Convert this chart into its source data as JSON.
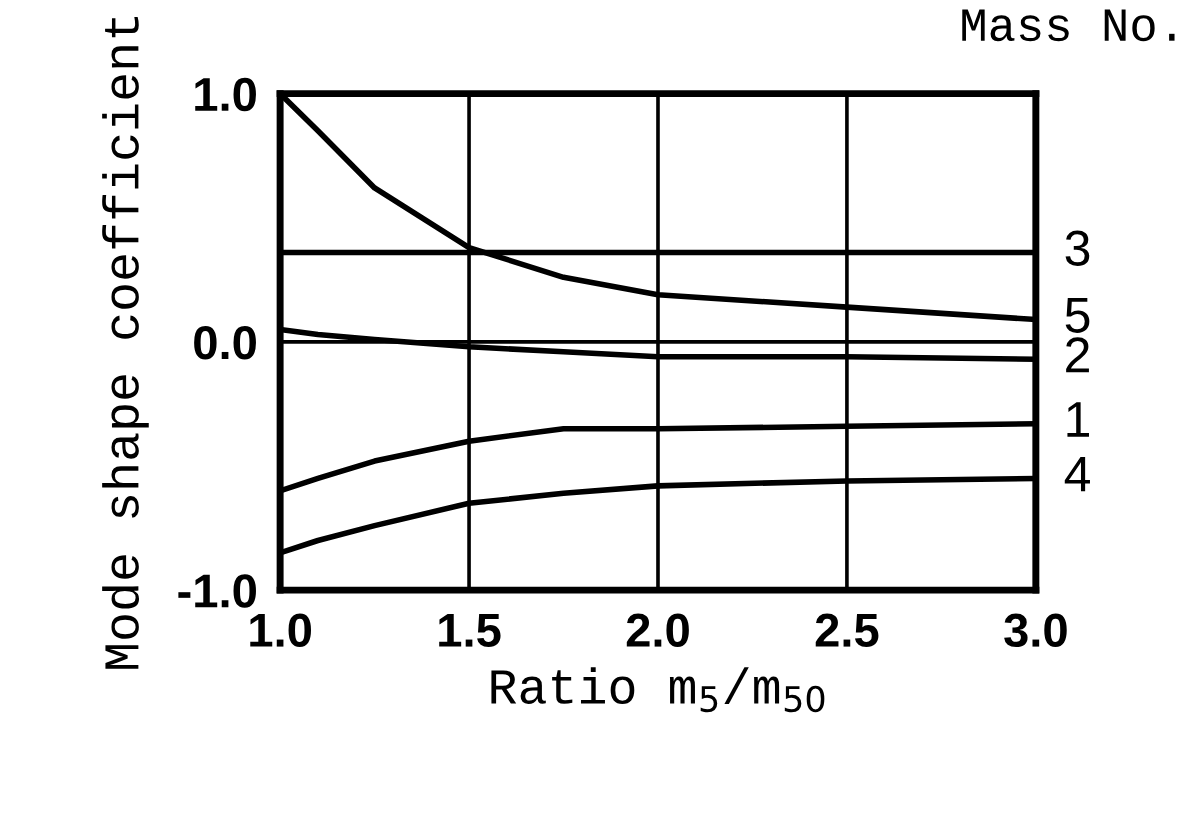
{
  "chart_data": {
    "type": "line",
    "xlabel": "Ratio m$_{5}$/m$_{50}$",
    "ylabel": "Mode shape coefficient",
    "legend_title": "Mass No.",
    "x": [
      1.0,
      1.1,
      1.25,
      1.5,
      1.75,
      2.0,
      2.5,
      3.0
    ],
    "series": [
      {
        "name": "3",
        "color": "#000000",
        "values": [
          0.36,
          0.36,
          0.36,
          0.36,
          0.36,
          0.36,
          0.36,
          0.36
        ]
      },
      {
        "name": "5",
        "color": "#000000",
        "values": [
          1.0,
          0.85,
          0.62,
          0.38,
          0.26,
          0.19,
          0.14,
          0.09
        ]
      },
      {
        "name": "2",
        "color": "#000000",
        "values": [
          0.05,
          0.03,
          0.01,
          -0.02,
          -0.04,
          -0.06,
          -0.06,
          -0.07
        ]
      },
      {
        "name": "1",
        "color": "#000000",
        "values": [
          -0.6,
          -0.55,
          -0.48,
          -0.4,
          -0.35,
          -0.35,
          -0.34,
          -0.33
        ]
      },
      {
        "name": "4",
        "color": "#000000",
        "values": [
          -0.85,
          -0.8,
          -0.74,
          -0.65,
          -0.61,
          -0.58,
          -0.56,
          -0.55
        ]
      }
    ],
    "xlim": [
      1.0,
      3.0
    ],
    "ylim": [
      -1.0,
      1.0
    ],
    "xticks": [
      {
        "value": 1.0,
        "label": "1.0"
      },
      1.5,
      {
        "value": 2.0,
        "label": "2.0"
      },
      2.5,
      {
        "value": 3.0,
        "label": "3.0"
      }
    ],
    "yticks": [
      {
        "value": -1.0,
        "label": "-1.0"
      },
      {
        "value": 0.0,
        "label": "0.0"
      },
      {
        "value": 1.0,
        "label": "1.0"
      }
    ],
    "grid": true,
    "line_style": "solid",
    "marker": "none"
  }
}
